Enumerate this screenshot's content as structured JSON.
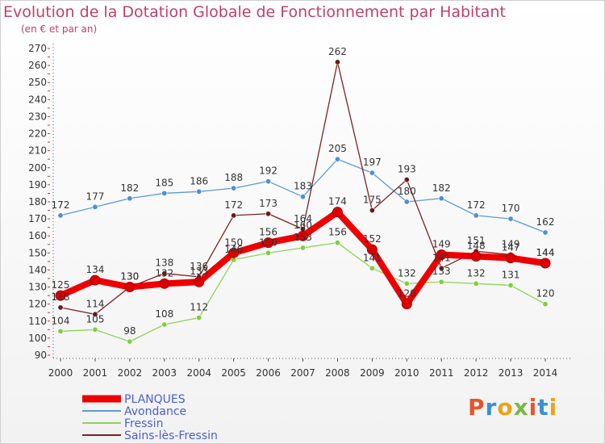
{
  "header": {
    "title": "Evolution de la Dotation Globale de Fonctionnement par Habitant",
    "subtitle": "(en € et par an)"
  },
  "logo": {
    "text": "Proxiti",
    "colors": [
      "#e8542a",
      "#3b8fd4",
      "#e8a317",
      "#7ab648"
    ]
  },
  "chart_data": {
    "type": "line",
    "title": "Evolution de la Dotation Globale de Fonctionnement par Habitant",
    "subtitle": "(en € et par an)",
    "xlabel": "",
    "ylabel": "",
    "x": [
      "2000",
      "2001",
      "2002",
      "2003",
      "2004",
      "2005",
      "2006",
      "2007",
      "2008",
      "2009",
      "2010",
      "2011",
      "2012",
      "2013",
      "2014"
    ],
    "ylim": [
      90,
      270
    ],
    "yticks": [
      90,
      100,
      110,
      120,
      130,
      140,
      150,
      160,
      170,
      180,
      190,
      200,
      210,
      220,
      230,
      240,
      250,
      260,
      270
    ],
    "grid": false,
    "legend": "bottom-left",
    "series": [
      {
        "name": "PLANQUES",
        "color": "#ee0000",
        "point_color": "#dd0000",
        "width": 8,
        "values": [
          125,
          134,
          130,
          132,
          133,
          150,
          156,
          160,
          174,
          152,
          120,
          149,
          148,
          147,
          144
        ],
        "labels": [
          "125",
          "134",
          "130",
          "132",
          "133",
          "150",
          "156",
          "160",
          "174",
          "152",
          "120",
          "149",
          "148",
          "147",
          "144"
        ]
      },
      {
        "name": "Avondance",
        "color": "#5b9bd5",
        "point_color": "#4f90cf",
        "width": 1.3,
        "values": [
          172,
          177,
          182,
          185,
          186,
          188,
          192,
          183,
          205,
          197,
          180,
          182,
          172,
          170,
          162
        ],
        "labels": [
          "172",
          "177",
          "182",
          "185",
          "186",
          "188",
          "192",
          "183",
          "205",
          "197",
          "180",
          "182",
          "172",
          "170",
          "162"
        ]
      },
      {
        "name": "Fressin",
        "color": "#8fd45a",
        "point_color": "#7fcf3c",
        "width": 1.3,
        "values": [
          104,
          105,
          98,
          108,
          112,
          146,
          150,
          153,
          156,
          141,
          132,
          133,
          132,
          131,
          120
        ],
        "labels": [
          "104",
          "105",
          "98",
          "108",
          "112",
          "146",
          "150",
          "153",
          "156",
          "141",
          "132",
          "133",
          "132",
          "131",
          "120"
        ]
      },
      {
        "name": "Sains-lès-Fressin",
        "color": "#7b2226",
        "point_color": "#6a1a1e",
        "width": 1.3,
        "values": [
          118,
          114,
          130,
          138,
          136,
          172,
          173,
          164,
          262,
          175,
          193,
          141,
          151,
          149,
          144
        ],
        "labels": [
          "118",
          "114",
          "130",
          "138",
          "136",
          "172",
          "173",
          "164",
          "262",
          "175",
          "193",
          "141",
          "151",
          "149",
          "144"
        ]
      }
    ]
  }
}
